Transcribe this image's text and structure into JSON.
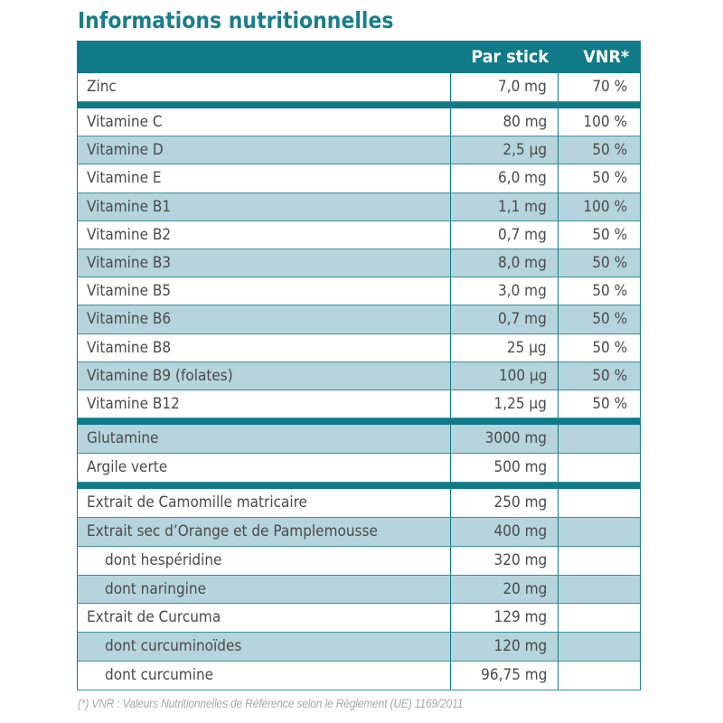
{
  "title": "Informations nutritionnelles",
  "table": {
    "headers": [
      "",
      "Par stick",
      "VNR*"
    ],
    "sections": [
      {
        "rows": [
          {
            "name": "Zinc",
            "amount": "7,0 mg",
            "vnr": "70 %",
            "indent": false
          }
        ]
      },
      {
        "rows": [
          {
            "name": "Vitamine C",
            "amount": "80 mg",
            "vnr": "100 %",
            "indent": false
          },
          {
            "name": "Vitamine D",
            "amount": "2,5 µg",
            "vnr": "50 %",
            "indent": false
          },
          {
            "name": "Vitamine E",
            "amount": "6,0 mg",
            "vnr": "50 %",
            "indent": false
          },
          {
            "name": "Vitamine B1",
            "amount": "1,1 mg",
            "vnr": "100 %",
            "indent": false
          },
          {
            "name": "Vitamine B2",
            "amount": "0,7 mg",
            "vnr": "50 %",
            "indent": false
          },
          {
            "name": "Vitamine B3",
            "amount": "8,0 mg",
            "vnr": "50 %",
            "indent": false
          },
          {
            "name": "Vitamine B5",
            "amount": "3,0 mg",
            "vnr": "50 %",
            "indent": false
          },
          {
            "name": "Vitamine B6",
            "amount": "0,7 mg",
            "vnr": "50 %",
            "indent": false
          },
          {
            "name": "Vitamine B8",
            "amount": "25 µg",
            "vnr": "50 %",
            "indent": false
          },
          {
            "name": "Vitamine B9 (folates)",
            "amount": "100 µg",
            "vnr": "50 %",
            "indent": false
          },
          {
            "name": "Vitamine B12",
            "amount": "1,25 µg",
            "vnr": "50 %",
            "indent": false
          }
        ]
      },
      {
        "rows": [
          {
            "name": "Glutamine",
            "amount": "3000 mg",
            "vnr": "",
            "indent": false
          },
          {
            "name": "Argile verte",
            "amount": "500 mg",
            "vnr": "",
            "indent": false
          }
        ]
      },
      {
        "rows": [
          {
            "name": "Extrait de Camomille matricaire",
            "amount": "250 mg",
            "vnr": "",
            "indent": false
          },
          {
            "name": "Extrait sec d’Orange et de Pamplemousse",
            "amount": "400 mg",
            "vnr": "",
            "indent": false
          },
          {
            "name": "dont hespéridine",
            "amount": "320 mg",
            "vnr": "",
            "indent": true
          },
          {
            "name": "dont naringine",
            "amount": "20 mg",
            "vnr": "",
            "indent": true
          },
          {
            "name": "Extrait de Curcuma",
            "amount": "129 mg",
            "vnr": "",
            "indent": false
          },
          {
            "name": "dont curcuminoïdes",
            "amount": "120 mg",
            "vnr": "",
            "indent": true
          },
          {
            "name": "dont curcumine",
            "amount": "96,75 mg",
            "vnr": "",
            "indent": true
          }
        ]
      }
    ]
  },
  "footnote": "(*) VNR : Valeurs Nutritionnelles de Référence selon le Règlement (UE) 1169/2011",
  "colors": {
    "accent": "#117a88",
    "title": "#1a7d8a",
    "shaded_row": "#b5d4db",
    "text": "#4a4a4a",
    "footnote": "#a8a8a8"
  }
}
